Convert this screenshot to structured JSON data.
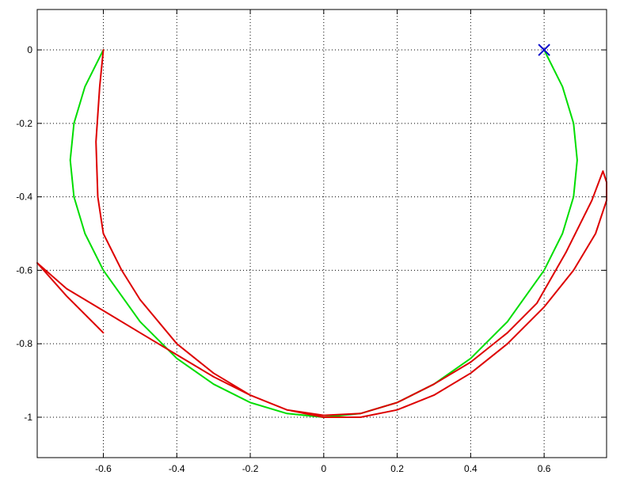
{
  "chart_data": {
    "type": "line",
    "title": "",
    "xlabel": "",
    "ylabel": "",
    "xlim": [
      -0.78,
      0.77
    ],
    "ylim": [
      -1.11,
      0.11
    ],
    "grid": true,
    "x_ticks": [
      -0.6,
      -0.4,
      -0.2,
      0,
      0.2,
      0.4,
      0.6
    ],
    "x_tick_labels": [
      "-0.6",
      "-0.4",
      "-0.2",
      "0",
      "0.2",
      "0.4",
      "0.6"
    ],
    "y_ticks": [
      0,
      -0.2,
      -0.4,
      -0.6,
      -0.8,
      -1
    ],
    "y_tick_labels": [
      "0",
      "-0.2",
      "-0.4",
      "-0.6",
      "-0.8",
      "-1"
    ],
    "series": [
      {
        "color": "#00dd00",
        "x": [
          0.6,
          0.65,
          0.68,
          0.69,
          0.68,
          0.65,
          0.6,
          0.5,
          0.4,
          0.3,
          0.2,
          0.1,
          0.0,
          -0.1,
          -0.2,
          -0.3,
          -0.4,
          -0.5,
          -0.6,
          -0.65,
          -0.68,
          -0.69,
          -0.68,
          -0.65,
          -0.6
        ],
        "y": [
          0.0,
          -0.1,
          -0.2,
          -0.3,
          -0.4,
          -0.5,
          -0.6,
          -0.74,
          -0.84,
          -0.91,
          -0.96,
          -0.99,
          -1.0,
          -0.99,
          -0.96,
          -0.91,
          -0.84,
          -0.74,
          -0.6,
          -0.5,
          -0.4,
          -0.3,
          -0.2,
          -0.1,
          0.0
        ]
      },
      {
        "color": "#dd0000",
        "x": [
          -0.6,
          -0.61,
          -0.62,
          -0.615,
          -0.6,
          -0.55,
          -0.5,
          -0.4,
          -0.3,
          -0.2,
          -0.1,
          0.0,
          0.1,
          0.2,
          0.3,
          0.4,
          0.5,
          0.58,
          0.62,
          0.66,
          0.7,
          0.73,
          0.76,
          0.77,
          0.77,
          0.74,
          0.68,
          0.6,
          0.5,
          0.4,
          0.3,
          0.2,
          0.1,
          0.0,
          -0.1,
          -0.2,
          -0.3,
          -0.4,
          -0.5,
          -0.6,
          -0.7,
          -0.78,
          -0.7,
          -0.6
        ],
        "y": [
          0.0,
          -0.1,
          -0.25,
          -0.4,
          -0.5,
          -0.6,
          -0.68,
          -0.8,
          -0.88,
          -0.94,
          -0.98,
          -0.995,
          -0.99,
          -0.96,
          -0.91,
          -0.85,
          -0.77,
          -0.69,
          -0.62,
          -0.55,
          -0.47,
          -0.41,
          -0.33,
          -0.36,
          -0.41,
          -0.5,
          -0.6,
          -0.7,
          -0.8,
          -0.88,
          -0.94,
          -0.98,
          -1.0,
          -1.0,
          -0.98,
          -0.94,
          -0.89,
          -0.83,
          -0.77,
          -0.71,
          -0.65,
          -0.58,
          -0.67,
          -0.77
        ]
      }
    ],
    "marker": {
      "x": 0.6,
      "y": 0.0,
      "symbol": "x",
      "color": "#0000cc"
    }
  }
}
